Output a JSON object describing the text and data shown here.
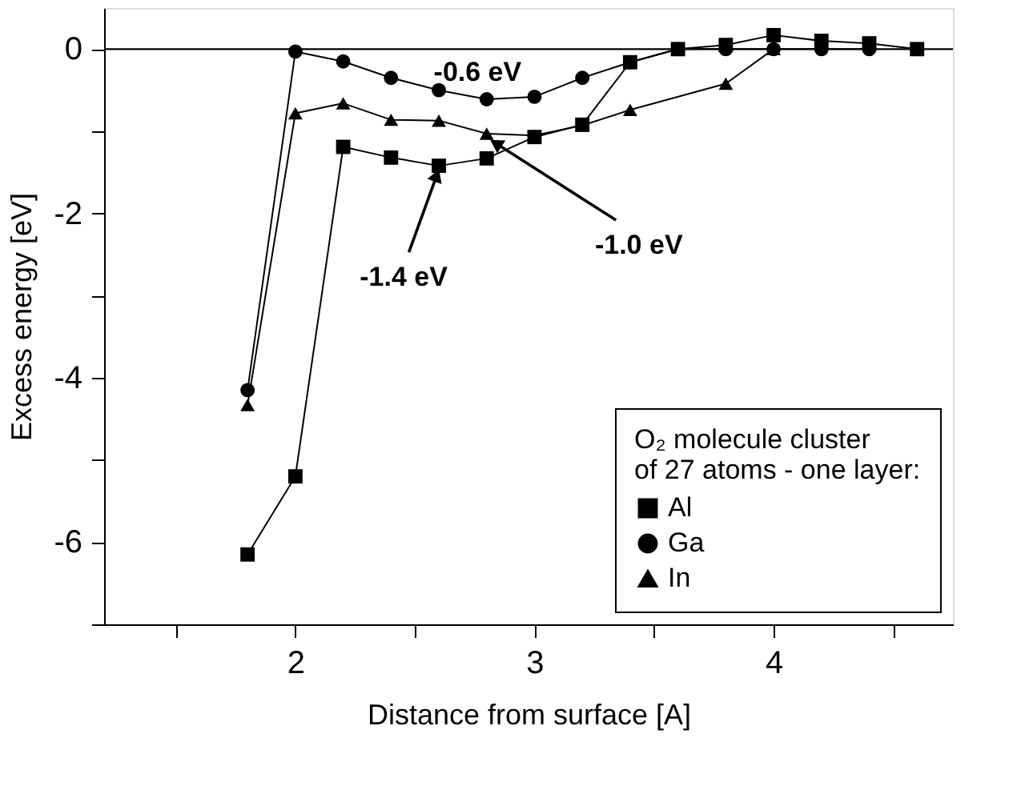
{
  "chart_data": {
    "type": "line",
    "xlabel": "Distance from surface [A]",
    "ylabel": "Excess energy [eV]",
    "legend_title": "O₂ molecule cluster\nof 27 atoms - one layer:",
    "legend": "bottom right",
    "grid": false,
    "line_style": "solid",
    "xlim": [
      1.2,
      4.75
    ],
    "ylim": [
      -7,
      0.5
    ],
    "xticks": [
      {
        "value": 1.5,
        "label": null
      },
      2,
      {
        "value": 2.5,
        "label": null
      },
      3,
      {
        "value": 3.5,
        "label": null
      },
      4,
      {
        "value": 4.5,
        "label": null
      }
    ],
    "yticks": [
      {
        "value": -7,
        "label": null
      },
      -6,
      {
        "value": -5,
        "label": null
      },
      -4,
      {
        "value": -3,
        "label": null
      },
      -2,
      {
        "value": -1,
        "label": null
      },
      0
    ],
    "series": [
      {
        "name": "Al",
        "color": "#000000",
        "marker": "square",
        "x": [
          1.8,
          2.0,
          2.2,
          2.4,
          2.6,
          2.8,
          3.0,
          3.2,
          3.4,
          3.6,
          3.8,
          4.0,
          4.2,
          4.4,
          4.6
        ],
        "values": [
          -6.15,
          -5.2,
          -1.19,
          -1.32,
          -1.42,
          -1.33,
          -1.07,
          -0.92,
          -0.16,
          0,
          0.05,
          0.17,
          0.1,
          0.07,
          0
        ]
      },
      {
        "name": "Ga",
        "color": "#000000",
        "marker": "circle",
        "x": [
          1.8,
          2.0,
          2.2,
          2.4,
          2.6,
          2.8,
          3.0,
          3.2,
          3.4,
          3.6,
          3.8,
          4.0,
          4.2,
          4.4
        ],
        "values": [
          -4.15,
          -0.03,
          -0.15,
          -0.35,
          -0.5,
          -0.61,
          -0.58,
          -0.35,
          -0.16,
          0,
          0,
          0,
          0,
          0
        ]
      },
      {
        "name": "In",
        "color": "#000000",
        "marker": "triangle",
        "x": [
          1.8,
          2.0,
          2.2,
          2.4,
          2.6,
          2.8,
          3.0,
          3.2,
          3.4,
          3.8,
          4.0
        ],
        "values": [
          -4.33,
          -0.78,
          -0.66,
          -0.86,
          -0.87,
          -1.03,
          -1.05,
          -0.93,
          -0.74,
          -0.42,
          0
        ]
      }
    ],
    "ref_lines": [
      {
        "axis": "y",
        "value": 0,
        "color": "#000000",
        "line_style": "solid"
      }
    ],
    "annotations": [
      "-0.6 eV",
      {
        "text": "-1.4 eV",
        "x": 2.6,
        "y": -1.42
      },
      {
        "text": "-1.0 eV",
        "x": 2.8,
        "y": -1.03
      }
    ]
  }
}
